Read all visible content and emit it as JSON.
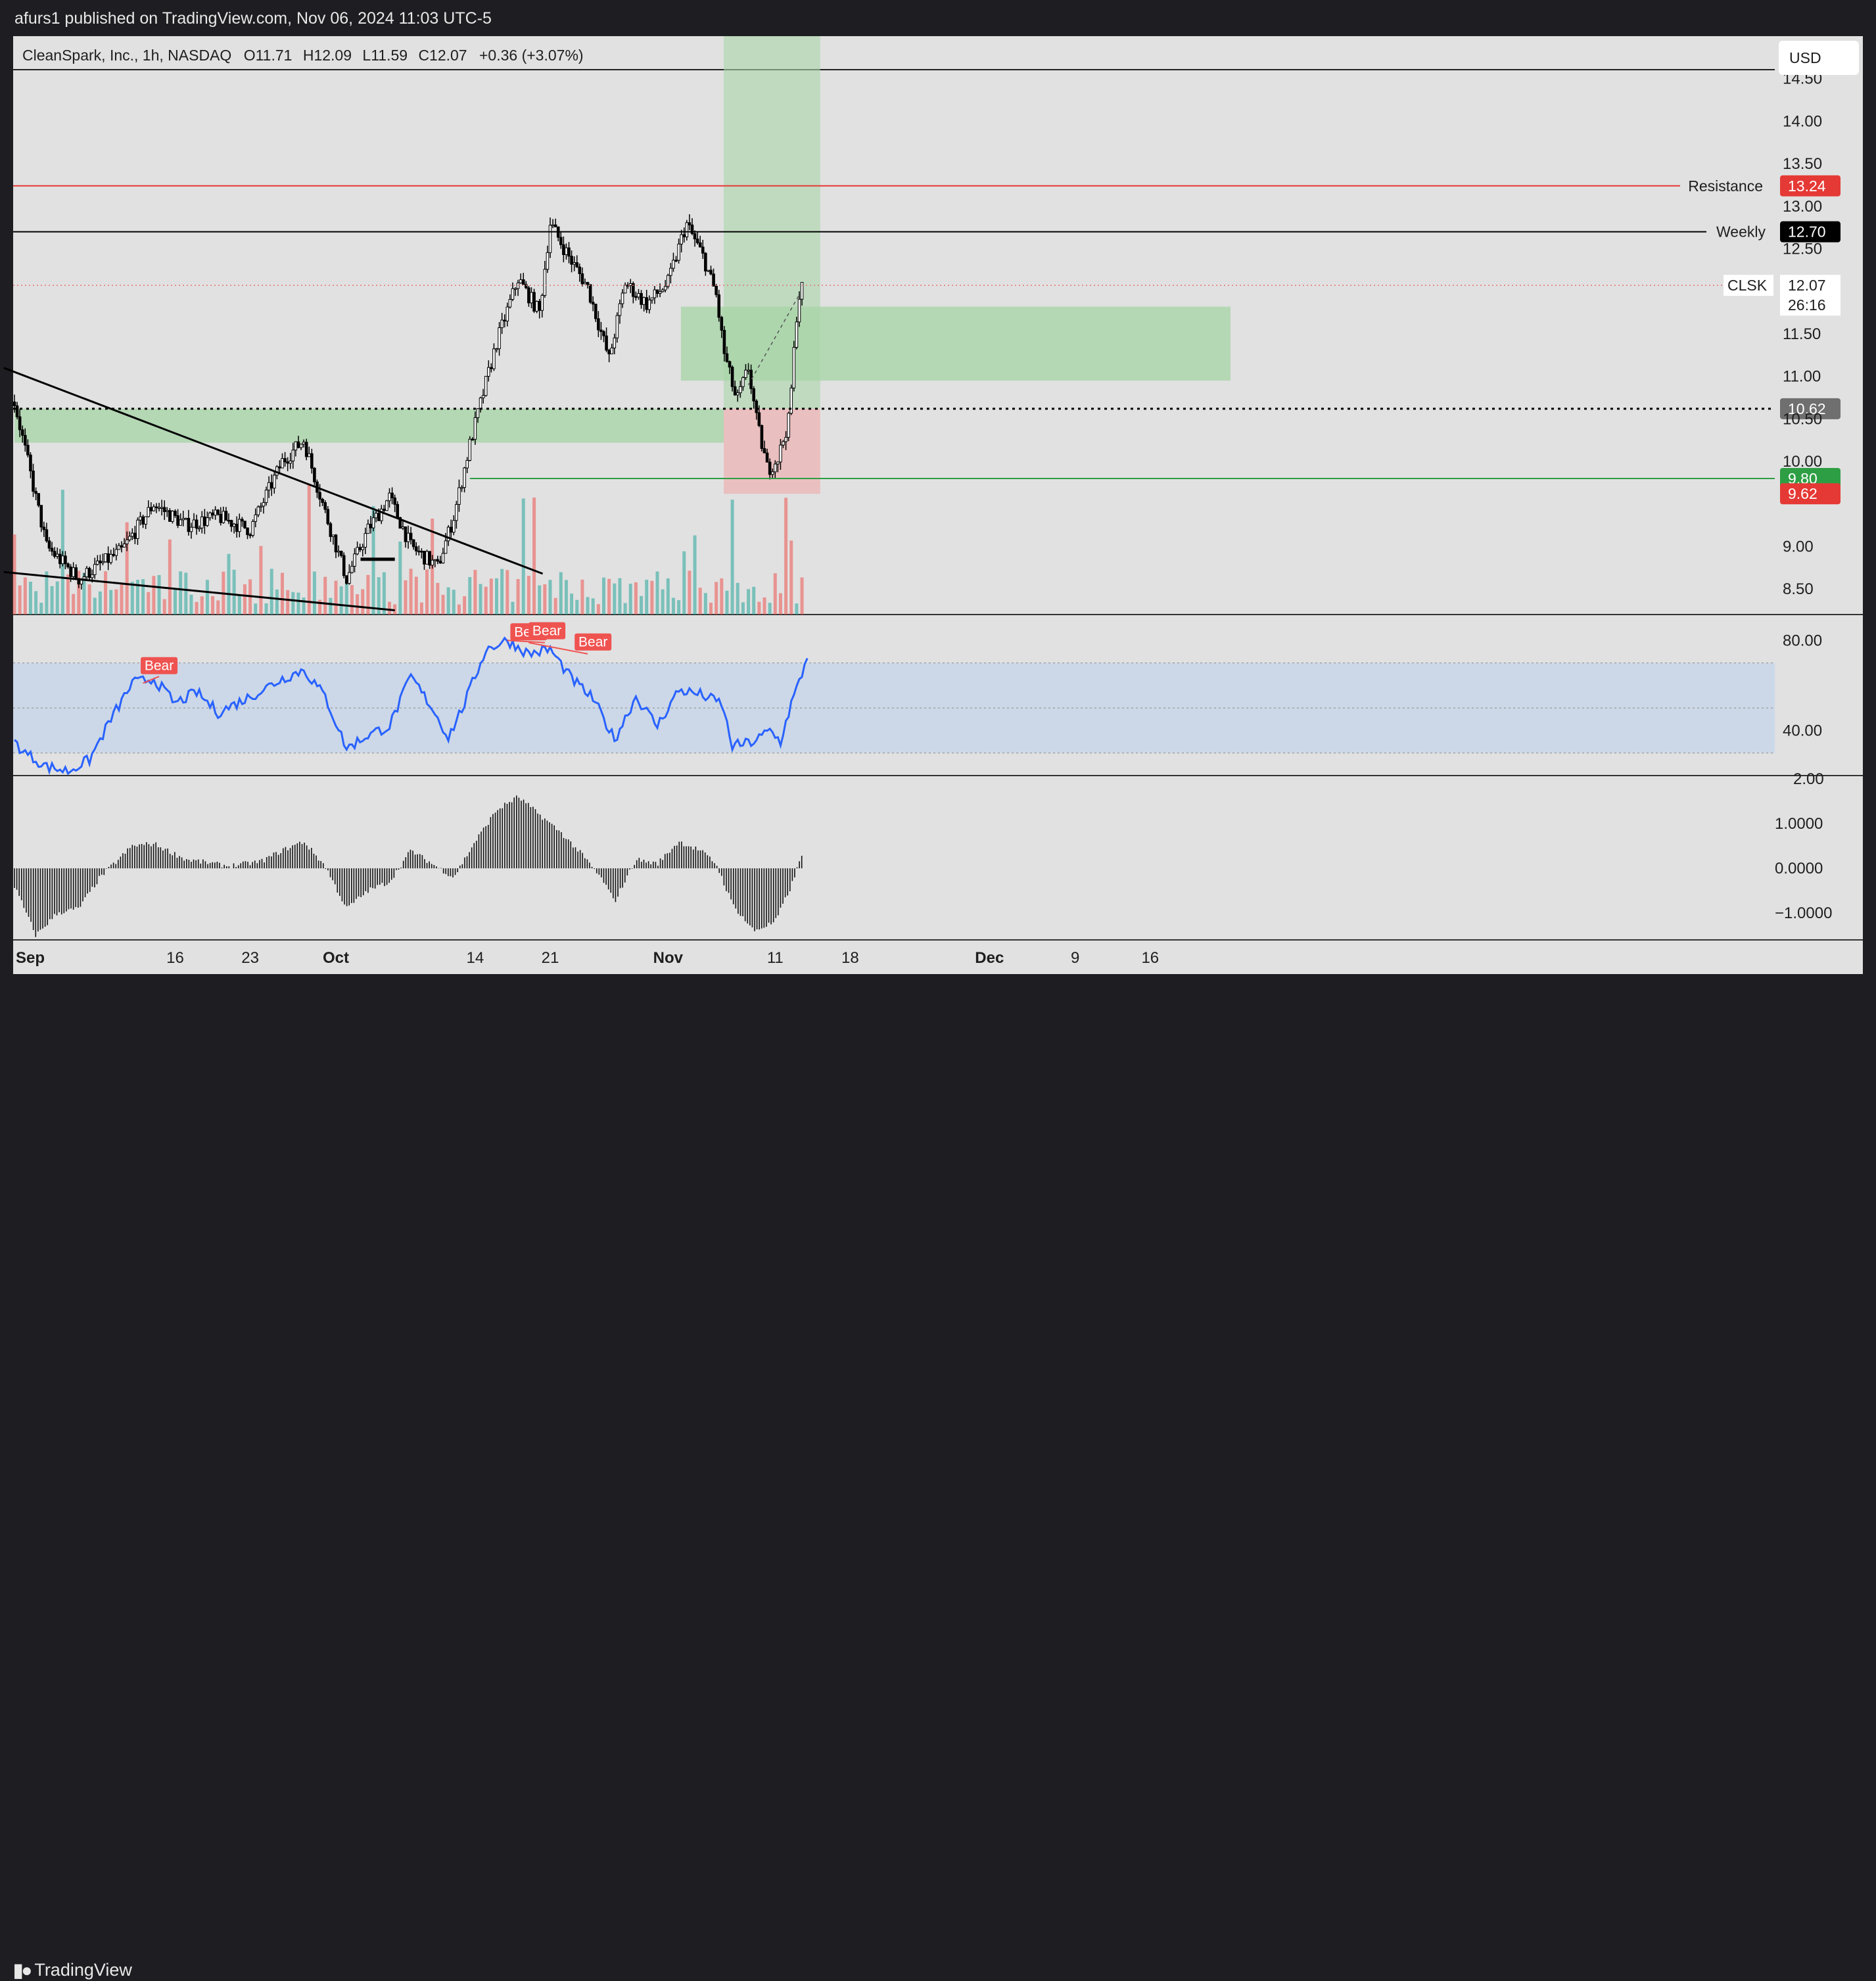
{
  "header": {
    "published": "afurs1 published on TradingView.com, Nov 06, 2024 11:03 UTC-5"
  },
  "footer": {
    "brand": "TradingView"
  },
  "legend": {
    "symbol": "CleanSpark, Inc., 1h, NASDAQ",
    "open": "O11.71",
    "high": "H12.09",
    "low": "L11.59",
    "close": "C12.07",
    "change": "+0.36 (+3.07%)"
  },
  "currency": "USD",
  "colors": {
    "background": "#e1e1e1",
    "up": "#26a69a",
    "down": "#ef5350",
    "resistance": "#e53935",
    "zone": "#8fcf8f",
    "rsi_line": "#2962ff",
    "rsi_band": "#c7d6e8"
  },
  "chart_data": [
    {
      "type": "candlestick",
      "panel": "price",
      "ylim": [
        8.2,
        15.0
      ],
      "y_ticks": [
        "14.50",
        "14.00",
        "13.50",
        "13.00",
        "12.50",
        "11.50",
        "11.00",
        "10.50",
        "10.00",
        "9.00",
        "8.50"
      ],
      "x_ticks": [
        {
          "label": "Sep",
          "day": 0,
          "bold": true
        },
        {
          "label": "16",
          "day": 15
        },
        {
          "label": "23",
          "day": 22
        },
        {
          "label": "Oct",
          "day": 30,
          "bold": true
        },
        {
          "label": "14",
          "day": 43
        },
        {
          "label": "21",
          "day": 50
        },
        {
          "label": "Nov",
          "day": 61,
          "bold": true
        },
        {
          "label": "11",
          "day": 71
        },
        {
          "label": "18",
          "day": 78
        },
        {
          "label": "Dec",
          "day": 91,
          "bold": true
        },
        {
          "label": "9",
          "day": 99
        },
        {
          "label": "16",
          "day": 106
        }
      ],
      "last_price": {
        "symbol": "CLSK",
        "value": "12.07",
        "countdown": "26:16"
      },
      "levels": [
        {
          "name": "Resistance",
          "value": 13.24,
          "label": "13.24"
        },
        {
          "name": "Weekly",
          "value": 12.7,
          "label": "12.70"
        },
        {
          "name": "",
          "value": 10.62,
          "label": "10.62"
        },
        {
          "name": "",
          "value": 9.8,
          "label": "9.80"
        },
        {
          "name": "",
          "value": 9.62,
          "label": "9.62"
        }
      ],
      "zones": [
        {
          "x": [
            0,
            66.2
          ],
          "y": [
            10.22,
            10.62
          ],
          "kind": "demand"
        },
        {
          "x": [
            62.2,
            113.5
          ],
          "y": [
            10.95,
            11.82
          ],
          "kind": "supply"
        }
      ],
      "position": {
        "x": [
          66.2,
          75.2
        ],
        "entry": 10.62,
        "target": 15.0,
        "stop": 9.62
      },
      "trendlines": [
        {
          "from": [
            -1,
            11.1
          ],
          "to": [
            49.3,
            8.68
          ]
        },
        {
          "from": [
            -1,
            8.7
          ],
          "to": [
            35.5,
            8.25
          ]
        },
        {
          "from": [
            32.3,
            8.85
          ],
          "to": [
            35.5,
            8.85
          ]
        }
      ],
      "anchor_points": [
        {
          "day": 0,
          "price": 10.7
        },
        {
          "day": 3,
          "price": 9.0
        },
        {
          "day": 6,
          "price": 8.62
        },
        {
          "day": 10,
          "price": 8.95
        },
        {
          "day": 13,
          "price": 9.5
        },
        {
          "day": 16,
          "price": 9.25
        },
        {
          "day": 19,
          "price": 9.35
        },
        {
          "day": 22,
          "price": 9.2
        },
        {
          "day": 25,
          "price": 10.0
        },
        {
          "day": 27,
          "price": 10.25
        },
        {
          "day": 29,
          "price": 9.4
        },
        {
          "day": 31,
          "price": 8.62
        },
        {
          "day": 33,
          "price": 9.2
        },
        {
          "day": 35,
          "price": 9.58
        },
        {
          "day": 37,
          "price": 9.0
        },
        {
          "day": 39.5,
          "price": 8.76
        },
        {
          "day": 41,
          "price": 9.35
        },
        {
          "day": 42.5,
          "price": 10.2
        },
        {
          "day": 45,
          "price": 11.4
        },
        {
          "day": 47,
          "price": 12.15
        },
        {
          "day": 49,
          "price": 11.75
        },
        {
          "day": 50,
          "price": 12.8
        },
        {
          "day": 52,
          "price": 12.35
        },
        {
          "day": 53.5,
          "price": 12.05
        },
        {
          "day": 55.5,
          "price": 11.2
        },
        {
          "day": 57,
          "price": 12.1
        },
        {
          "day": 59,
          "price": 11.85
        },
        {
          "day": 61,
          "price": 12.1
        },
        {
          "day": 62.7,
          "price": 12.8
        },
        {
          "day": 64.3,
          "price": 12.4
        },
        {
          "day": 65.5,
          "price": 11.95
        },
        {
          "day": 66.2,
          "price": 11.3
        },
        {
          "day": 67.4,
          "price": 10.7
        },
        {
          "day": 68.5,
          "price": 11.1
        },
        {
          "day": 69.3,
          "price": 10.45
        },
        {
          "day": 70.3,
          "price": 9.9
        },
        {
          "day": 71.3,
          "price": 10.05
        },
        {
          "day": 72.3,
          "price": 10.5
        },
        {
          "day": 73.1,
          "price": 11.9
        },
        {
          "day": 73.6,
          "price": 12.07
        }
      ]
    },
    {
      "type": "line",
      "panel": "rsi",
      "ylim": [
        20,
        90
      ],
      "y_ticks": [
        "80.00",
        "40.00"
      ],
      "band": [
        30,
        70
      ],
      "midline": 50,
      "annotations": [
        "Bear",
        "Bear",
        "Bear",
        "Bear"
      ],
      "anchor_points": [
        {
          "day": 0,
          "value": 35
        },
        {
          "day": 1,
          "value": 30
        },
        {
          "day": 3,
          "value": 24
        },
        {
          "day": 5,
          "value": 22
        },
        {
          "day": 7,
          "value": 27
        },
        {
          "day": 9,
          "value": 45
        },
        {
          "day": 11,
          "value": 61
        },
        {
          "day": 13,
          "value": 63
        },
        {
          "day": 15,
          "value": 52
        },
        {
          "day": 17,
          "value": 57
        },
        {
          "day": 19,
          "value": 48
        },
        {
          "day": 22,
          "value": 55
        },
        {
          "day": 25,
          "value": 63
        },
        {
          "day": 27,
          "value": 67
        },
        {
          "day": 29,
          "value": 55
        },
        {
          "day": 31,
          "value": 32
        },
        {
          "day": 33,
          "value": 38
        },
        {
          "day": 35,
          "value": 42
        },
        {
          "day": 37,
          "value": 64
        },
        {
          "day": 39,
          "value": 50
        },
        {
          "day": 40.5,
          "value": 37
        },
        {
          "day": 42,
          "value": 52
        },
        {
          "day": 44,
          "value": 76
        },
        {
          "day": 46,
          "value": 80
        },
        {
          "day": 48,
          "value": 74
        },
        {
          "day": 50,
          "value": 76
        },
        {
          "day": 52,
          "value": 63
        },
        {
          "day": 54,
          "value": 54
        },
        {
          "day": 56,
          "value": 36
        },
        {
          "day": 58,
          "value": 55
        },
        {
          "day": 60,
          "value": 42
        },
        {
          "day": 62,
          "value": 58
        },
        {
          "day": 64,
          "value": 56
        },
        {
          "day": 66,
          "value": 52
        },
        {
          "day": 67,
          "value": 33
        },
        {
          "day": 69,
          "value": 35
        },
        {
          "day": 70.5,
          "value": 40
        },
        {
          "day": 71.5,
          "value": 35
        },
        {
          "day": 72.5,
          "value": 52
        },
        {
          "day": 73.3,
          "value": 62
        },
        {
          "day": 74,
          "value": 73
        }
      ]
    },
    {
      "type": "bar",
      "panel": "histogram",
      "ylim": [
        -1.6,
        2.0
      ],
      "y_ticks": [
        "2.00",
        "1.0000",
        "0.0000",
        "−1.0000"
      ],
      "anchor_points": [
        {
          "day": 0,
          "value": -0.4
        },
        {
          "day": 2,
          "value": -1.5
        },
        {
          "day": 4,
          "value": -1.0
        },
        {
          "day": 6,
          "value": -0.9
        },
        {
          "day": 8,
          "value": -0.2
        },
        {
          "day": 11,
          "value": 0.5
        },
        {
          "day": 13,
          "value": 0.55
        },
        {
          "day": 16,
          "value": 0.2
        },
        {
          "day": 20,
          "value": 0.05
        },
        {
          "day": 23,
          "value": 0.15
        },
        {
          "day": 25,
          "value": 0.4
        },
        {
          "day": 27,
          "value": 0.6
        },
        {
          "day": 29,
          "value": 0.05
        },
        {
          "day": 31,
          "value": -0.9
        },
        {
          "day": 33,
          "value": -0.5
        },
        {
          "day": 35,
          "value": -0.3
        },
        {
          "day": 37,
          "value": 0.4
        },
        {
          "day": 39,
          "value": 0.1
        },
        {
          "day": 41,
          "value": -0.2
        },
        {
          "day": 43,
          "value": 0.6
        },
        {
          "day": 45,
          "value": 1.3
        },
        {
          "day": 47,
          "value": 1.6
        },
        {
          "day": 49,
          "value": 1.2
        },
        {
          "day": 51,
          "value": 0.8
        },
        {
          "day": 53,
          "value": 0.3
        },
        {
          "day": 55,
          "value": -0.3
        },
        {
          "day": 56,
          "value": -0.75
        },
        {
          "day": 58,
          "value": 0.2
        },
        {
          "day": 60,
          "value": 0.1
        },
        {
          "day": 62,
          "value": 0.6
        },
        {
          "day": 64,
          "value": 0.4
        },
        {
          "day": 65.5,
          "value": 0.1
        },
        {
          "day": 67,
          "value": -0.8
        },
        {
          "day": 69,
          "value": -1.4
        },
        {
          "day": 71,
          "value": -1.2
        },
        {
          "day": 72.5,
          "value": -0.4
        },
        {
          "day": 73.5,
          "value": 0.3
        }
      ]
    }
  ]
}
